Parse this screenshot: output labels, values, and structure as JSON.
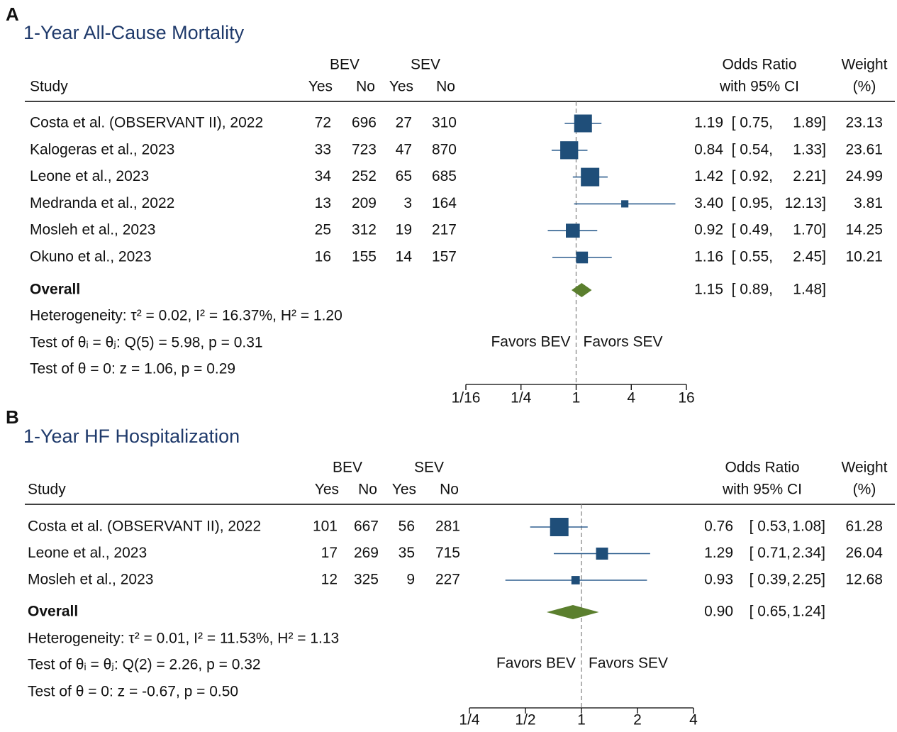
{
  "chart_data": [
    {
      "type": "forest",
      "panel": "A",
      "title": "1-Year All-Cause Mortality",
      "columns": {
        "study": "Study",
        "group1": "BEV",
        "group2": "SEV",
        "yes": "Yes",
        "no": "No",
        "effect": "Odds Ratio",
        "effect_sub": "with 95% CI",
        "weight": "Weight",
        "weight_sub": "(%)"
      },
      "studies": [
        "Costa et al. (OBSERVANT II), 2022",
        "Kalogeras et al., 2023",
        "Leone et al., 2023",
        "Medranda et al., 2022",
        "Mosleh et al., 2023",
        "Okuno et al., 2023"
      ],
      "bev_yes": [
        72,
        33,
        34,
        13,
        25,
        16
      ],
      "bev_no": [
        696,
        723,
        252,
        209,
        312,
        155
      ],
      "sev_yes": [
        27,
        47,
        65,
        3,
        19,
        14
      ],
      "sev_no": [
        310,
        870,
        685,
        164,
        217,
        157
      ],
      "or": {
        "values": [
          1.19,
          0.84,
          1.42,
          3.4,
          0.92,
          1.16
        ],
        "value_labels": [
          "1.19",
          "0.84",
          "1.42",
          "3.40",
          "0.92",
          "1.16"
        ]
      },
      "ci_lower": {
        "values": [
          0.75,
          0.54,
          0.92,
          0.95,
          0.49,
          0.55
        ],
        "value_labels": [
          "[ 0.75,",
          "[ 0.54,",
          "[ 0.92,",
          "[ 0.95,",
          "[ 0.49,",
          "[ 0.55,"
        ]
      },
      "ci_upper": {
        "values": [
          1.89,
          1.33,
          2.21,
          12.13,
          1.7,
          2.45
        ],
        "value_labels": [
          "1.89]",
          "1.33]",
          "2.21]",
          "12.13]",
          "1.70]",
          "2.45]"
        ]
      },
      "weight": {
        "values": [
          23.13,
          23.61,
          24.99,
          3.81,
          14.25,
          10.21
        ],
        "value_labels": [
          "23.13",
          "23.61",
          "24.99",
          "3.81",
          "14.25",
          "10.21"
        ]
      },
      "overall": {
        "label": "Overall",
        "or": 1.15,
        "or_label": "1.15",
        "ci_lower": 0.89,
        "ci_lower_label": "[ 0.89,",
        "ci_upper": 1.48,
        "ci_upper_label": "1.48]"
      },
      "stats": [
        "Heterogeneity: τ² = 0.02, I² = 16.37%, H² = 1.20",
        "Test of θᵢ = θⱼ: Q(5) = 5.98, p = 0.31",
        "Test of θ = 0: z = 1.06, p = 0.29"
      ],
      "annotations": [
        "Favors BEV",
        "Favors SEV"
      ],
      "log_x": true,
      "xlim": [
        0.0625,
        16
      ],
      "xticks": [
        {
          "value": 0.0625,
          "label": "1/16"
        },
        {
          "value": 0.25,
          "label": "1/4"
        },
        1,
        4,
        16
      ],
      "reference": 1,
      "square_color": "#1f4e79",
      "ci_color": "#2f5f8f",
      "diamond_color": "#5b7f2e"
    },
    {
      "type": "forest",
      "panel": "B",
      "title": "1-Year HF Hospitalization",
      "columns": {
        "study": "Study",
        "group1": "BEV",
        "group2": "SEV",
        "yes": "Yes",
        "no": "No",
        "effect": "Odds Ratio",
        "effect_sub": "with 95% CI",
        "weight": "Weight",
        "weight_sub": "(%)"
      },
      "studies": [
        "Costa et al. (OBSERVANT II), 2022",
        "Leone et al., 2023",
        "Mosleh et al., 2023"
      ],
      "bev_yes": [
        101,
        17,
        12
      ],
      "bev_no": [
        667,
        269,
        325
      ],
      "sev_yes": [
        56,
        35,
        9
      ],
      "sev_no": [
        281,
        715,
        227
      ],
      "or": {
        "values": [
          0.76,
          1.29,
          0.93
        ],
        "value_labels": [
          "0.76",
          "1.29",
          "0.93"
        ]
      },
      "ci_lower": {
        "values": [
          0.53,
          0.71,
          0.39
        ],
        "value_labels": [
          "[ 0.53,",
          "[ 0.71,",
          "[ 0.39,"
        ]
      },
      "ci_upper": {
        "values": [
          1.08,
          2.34,
          2.25
        ],
        "value_labels": [
          "1.08]",
          "2.34]",
          "2.25]"
        ]
      },
      "weight": {
        "values": [
          61.28,
          26.04,
          12.68
        ],
        "value_labels": [
          "61.28",
          "26.04",
          "12.68"
        ]
      },
      "overall": {
        "label": "Overall",
        "or": 0.9,
        "or_label": "0.90",
        "ci_lower": 0.65,
        "ci_lower_label": "[ 0.65,",
        "ci_upper": 1.24,
        "ci_upper_label": "1.24]"
      },
      "stats": [
        "Heterogeneity: τ² = 0.01, I² = 11.53%, H² = 1.13",
        "Test of θᵢ = θⱼ: Q(2) = 2.26, p = 0.32",
        "Test of θ = 0: z = -0.67, p = 0.50"
      ],
      "annotations": [
        "Favors BEV",
        "Favors SEV"
      ],
      "log_x": true,
      "xlim": [
        0.25,
        4
      ],
      "xticks": [
        {
          "value": 0.25,
          "label": "1/4"
        },
        {
          "value": 0.5,
          "label": "1/2"
        },
        1,
        2,
        4
      ],
      "reference": 1,
      "square_color": "#1f4e79",
      "ci_color": "#2f5f8f",
      "diamond_color": "#5b7f2e"
    }
  ]
}
